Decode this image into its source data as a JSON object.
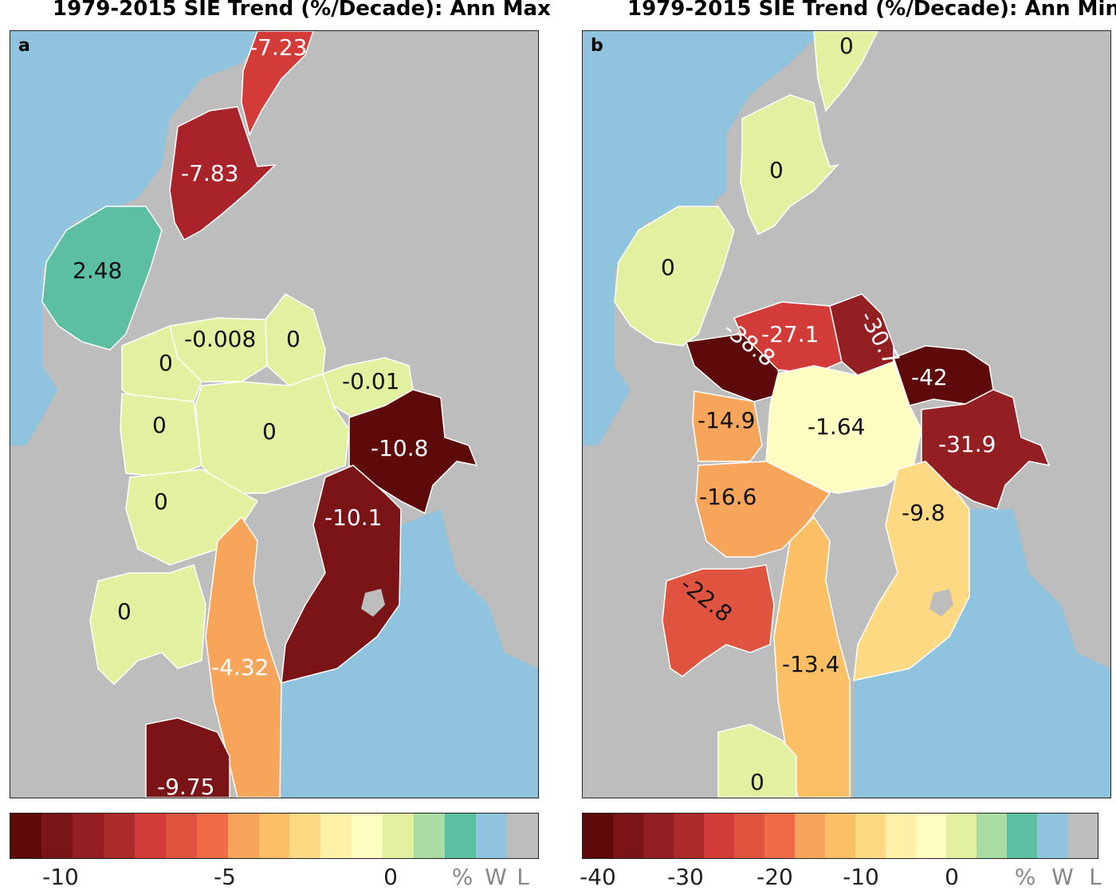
{
  "panel_a": {
    "title": "1979-2015 SIE Trend (%/Decade): Ann Max",
    "letter": "a",
    "labels": {
      "top_strait": "-7.23",
      "bay1": "-7.83",
      "okhotsk": "2.48",
      "laptev": "-0.008",
      "east_sib": "0",
      "chukchi": "0",
      "kara": "-0.01",
      "beaufort": "0",
      "central": "0",
      "barents": "-10.8",
      "greenland_sea": "-10.1",
      "caa": "0",
      "hudson": "0",
      "baffin": "-4.32",
      "gulf": "-9.75"
    },
    "colorbar": {
      "colors": [
        "#5e0a0a",
        "#7a1416",
        "#941f23",
        "#ab2a2a",
        "#d33b38",
        "#e0543f",
        "#f06c47",
        "#f8a55c",
        "#fbc066",
        "#fed984",
        "#fff0a8",
        "#fefdc1",
        "#e2f1a0",
        "#a8dca2",
        "#5cbfa1",
        "#90c3dd",
        "#bdbdbd"
      ],
      "ticks": [
        "-10",
        "-5",
        "0"
      ],
      "categories": [
        "%",
        "W",
        "L"
      ]
    }
  },
  "panel_b": {
    "title": "1979-2015 SIE Trend (%/Decade): Ann Min",
    "letter": "b",
    "labels": {
      "top_strait": "0",
      "bay1": "0",
      "okhotsk": "0",
      "laptev": "-27.1",
      "east_sib": "-30.7",
      "chukchi": "-38.8",
      "kara": "-42",
      "beaufort": "-14.9",
      "central": "-1.64",
      "barents": "-31.9",
      "greenland_sea": "-9.8",
      "caa": "-16.6",
      "hudson": "-22.8",
      "baffin": "-13.4",
      "gulf": "0"
    },
    "colorbar": {
      "colors": [
        "#5e0a0a",
        "#7a1416",
        "#941f23",
        "#ab2a2a",
        "#d33b38",
        "#e0543f",
        "#f06c47",
        "#f8a55c",
        "#fbc066",
        "#fed984",
        "#fff0a8",
        "#fefdc1",
        "#e2f1a0",
        "#a8dca2",
        "#5cbfa1",
        "#90c3dd",
        "#bdbdbd"
      ],
      "ticks": [
        "-40",
        "-30",
        "-20",
        "-10",
        "0"
      ],
      "categories": [
        "%",
        "W",
        "L"
      ]
    }
  },
  "colors": {
    "water": "#90c3dd",
    "land": "#bdbdbd",
    "a": {
      "top_strait": "#d33b38",
      "bay1": "#a8232a",
      "okhotsk": "#5cbfa1",
      "yellow": "#e2f1a0",
      "barents": "#5e0a0a",
      "greenland_sea": "#7a1416",
      "baffin": "#f8a55c",
      "gulf": "#7a1416"
    },
    "b": {
      "pale": "#e2f1a0",
      "laptev": "#d33b38",
      "east_sib": "#941f23",
      "chukchi": "#5e0a0a",
      "kara": "#5e0a0a",
      "beaufort": "#f8a55c",
      "central": "#fefdc1",
      "barents": "#941f23",
      "greenland_sea": "#fed984",
      "caa": "#f8a55c",
      "hudson": "#e0543f",
      "baffin": "#fbc066"
    }
  }
}
